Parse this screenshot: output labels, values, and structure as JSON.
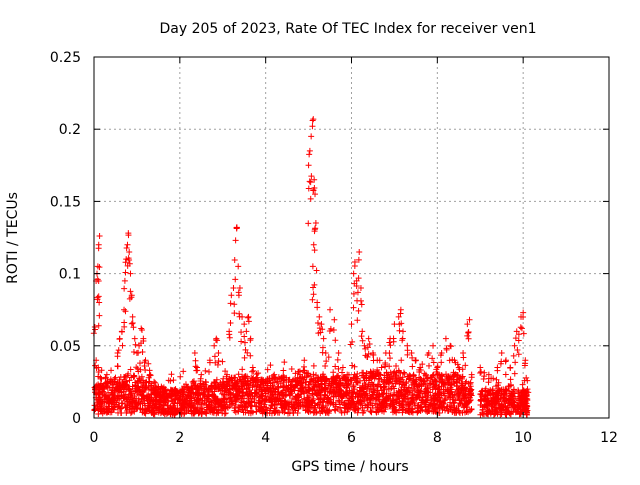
{
  "chart_data": {
    "type": "scatter",
    "title": "Day 205 of 2023, Rate Of TEC Index for receiver ven1",
    "xlabel": "GPS time / hours",
    "ylabel": "ROTI / TECUs",
    "xlim": [
      0,
      12
    ],
    "ylim": [
      0,
      0.25
    ],
    "x_ticks": [
      "0",
      "2",
      "4",
      "6",
      "8",
      "10",
      "12"
    ],
    "y_ticks": [
      "0",
      "0.05",
      "0.1",
      "0.15",
      "0.2",
      "0.25"
    ],
    "x_tick_values": [
      0,
      2,
      4,
      6,
      8,
      10,
      12
    ],
    "y_tick_values": [
      0,
      0.05,
      0.1,
      0.15,
      0.2,
      0.25
    ],
    "grid": true,
    "marker": "plus",
    "series": [
      {
        "color": "#ff0000",
        "points": [
          [
            0.02,
            0.063
          ],
          [
            0.05,
            0.04
          ],
          [
            0.07,
            0.1
          ],
          [
            0.09,
            0.105
          ],
          [
            0.11,
            0.12
          ],
          [
            0.13,
            0.126
          ],
          [
            0.12,
            0.08
          ],
          [
            0.1,
            0.035
          ],
          [
            0.15,
            0.028
          ],
          [
            0.2,
            0.022
          ],
          [
            0.3,
            0.03
          ],
          [
            0.4,
            0.025
          ],
          [
            0.5,
            0.028
          ],
          [
            0.55,
            0.045
          ],
          [
            0.6,
            0.055
          ],
          [
            0.65,
            0.06
          ],
          [
            0.7,
            0.075
          ],
          [
            0.72,
            0.095
          ],
          [
            0.75,
            0.11
          ],
          [
            0.78,
            0.12
          ],
          [
            0.8,
            0.128
          ],
          [
            0.82,
            0.115
          ],
          [
            0.85,
            0.1
          ],
          [
            0.88,
            0.085
          ],
          [
            0.9,
            0.07
          ],
          [
            0.95,
            0.055
          ],
          [
            1.0,
            0.045
          ],
          [
            1.05,
            0.05
          ],
          [
            1.1,
            0.062
          ],
          [
            1.15,
            0.055
          ],
          [
            1.2,
            0.04
          ],
          [
            1.3,
            0.03
          ],
          [
            1.4,
            0.025
          ],
          [
            1.5,
            0.02
          ],
          [
            1.6,
            0.018
          ],
          [
            1.7,
            0.015
          ],
          [
            1.8,
            0.017
          ],
          [
            1.9,
            0.02
          ],
          [
            2.0,
            0.018
          ],
          [
            2.1,
            0.022
          ],
          [
            2.2,
            0.02
          ],
          [
            2.3,
            0.025
          ],
          [
            2.35,
            0.045
          ],
          [
            2.4,
            0.035
          ],
          [
            2.5,
            0.03
          ],
          [
            2.6,
            0.025
          ],
          [
            2.7,
            0.04
          ],
          [
            2.8,
            0.05
          ],
          [
            2.85,
            0.055
          ],
          [
            2.9,
            0.045
          ],
          [
            3.0,
            0.025
          ],
          [
            3.1,
            0.03
          ],
          [
            3.15,
            0.06
          ],
          [
            3.2,
            0.085
          ],
          [
            3.25,
            0.09
          ],
          [
            3.3,
            0.123
          ],
          [
            3.33,
            0.132
          ],
          [
            3.36,
            0.105
          ],
          [
            3.4,
            0.09
          ],
          [
            3.45,
            0.07
          ],
          [
            3.5,
            0.065
          ],
          [
            3.55,
            0.06
          ],
          [
            3.6,
            0.07
          ],
          [
            3.65,
            0.055
          ],
          [
            3.7,
            0.035
          ],
          [
            3.8,
            0.028
          ],
          [
            4.0,
            0.025
          ],
          [
            4.2,
            0.03
          ],
          [
            4.4,
            0.028
          ],
          [
            4.6,
            0.025
          ],
          [
            4.8,
            0.03
          ],
          [
            4.9,
            0.04
          ],
          [
            5.0,
            0.175
          ],
          [
            5.03,
            0.185
          ],
          [
            5.06,
            0.195
          ],
          [
            5.09,
            0.202
          ],
          [
            5.11,
            0.207
          ],
          [
            5.13,
            0.165
          ],
          [
            5.15,
            0.155
          ],
          [
            5.17,
            0.135
          ],
          [
            5.12,
            0.12
          ],
          [
            5.1,
            0.105
          ],
          [
            5.2,
            0.08
          ],
          [
            5.25,
            0.07
          ],
          [
            5.3,
            0.065
          ],
          [
            5.35,
            0.055
          ],
          [
            5.4,
            0.045
          ],
          [
            5.5,
            0.075
          ],
          [
            5.6,
            0.068
          ],
          [
            5.7,
            0.045
          ],
          [
            5.8,
            0.035
          ],
          [
            5.9,
            0.03
          ],
          [
            6.0,
            0.065
          ],
          [
            6.05,
            0.1
          ],
          [
            6.08,
            0.108
          ],
          [
            6.12,
            0.095
          ],
          [
            6.15,
            0.087
          ],
          [
            6.18,
            0.115
          ],
          [
            6.22,
            0.09
          ],
          [
            6.25,
            0.06
          ],
          [
            6.3,
            0.05
          ],
          [
            6.4,
            0.055
          ],
          [
            6.5,
            0.045
          ],
          [
            6.6,
            0.04
          ],
          [
            6.7,
            0.035
          ],
          [
            6.8,
            0.045
          ],
          [
            6.9,
            0.055
          ],
          [
            7.0,
            0.065
          ],
          [
            7.1,
            0.07
          ],
          [
            7.15,
            0.075
          ],
          [
            7.2,
            0.06
          ],
          [
            7.3,
            0.05
          ],
          [
            7.4,
            0.045
          ],
          [
            7.5,
            0.04
          ],
          [
            7.6,
            0.035
          ],
          [
            7.8,
            0.045
          ],
          [
            7.9,
            0.05
          ],
          [
            8.0,
            0.035
          ],
          [
            8.1,
            0.045
          ],
          [
            8.2,
            0.055
          ],
          [
            8.3,
            0.05
          ],
          [
            8.4,
            0.04
          ],
          [
            8.5,
            0.035
          ],
          [
            8.6,
            0.045
          ],
          [
            8.7,
            0.065
          ],
          [
            8.75,
            0.068
          ],
          [
            8.8,
            0.03
          ],
          [
            9.0,
            0.035
          ],
          [
            9.2,
            0.03
          ],
          [
            9.4,
            0.035
          ],
          [
            9.5,
            0.045
          ],
          [
            9.6,
            0.04
          ],
          [
            9.7,
            0.035
          ],
          [
            9.8,
            0.05
          ],
          [
            9.85,
            0.06
          ],
          [
            9.9,
            0.058
          ],
          [
            9.95,
            0.07
          ],
          [
            10.0,
            0.073
          ],
          [
            10.05,
            0.04
          ],
          [
            10.1,
            0.02
          ]
        ],
        "baseline_band": [
          [
            0.0,
            0.012
          ],
          [
            0.2,
            0.014
          ],
          [
            0.4,
            0.015
          ],
          [
            0.6,
            0.016
          ],
          [
            0.8,
            0.017
          ],
          [
            1.0,
            0.016
          ],
          [
            1.2,
            0.014
          ],
          [
            1.4,
            0.013
          ],
          [
            1.6,
            0.012
          ],
          [
            1.8,
            0.011
          ],
          [
            2.0,
            0.011
          ],
          [
            2.2,
            0.012
          ],
          [
            2.4,
            0.013
          ],
          [
            2.6,
            0.013
          ],
          [
            2.8,
            0.014
          ],
          [
            3.0,
            0.014
          ],
          [
            3.2,
            0.016
          ],
          [
            3.4,
            0.017
          ],
          [
            3.6,
            0.016
          ],
          [
            3.8,
            0.015
          ],
          [
            4.0,
            0.015
          ],
          [
            4.2,
            0.016
          ],
          [
            4.4,
            0.016
          ],
          [
            4.6,
            0.015
          ],
          [
            4.8,
            0.016
          ],
          [
            5.0,
            0.017
          ],
          [
            5.2,
            0.017
          ],
          [
            5.4,
            0.016
          ],
          [
            5.6,
            0.016
          ],
          [
            5.8,
            0.016
          ],
          [
            6.0,
            0.017
          ],
          [
            6.2,
            0.018
          ],
          [
            6.4,
            0.018
          ],
          [
            6.6,
            0.018
          ],
          [
            6.8,
            0.018
          ],
          [
            7.0,
            0.018
          ],
          [
            7.2,
            0.018
          ],
          [
            7.4,
            0.017
          ],
          [
            7.6,
            0.017
          ],
          [
            7.8,
            0.017
          ],
          [
            8.0,
            0.017
          ],
          [
            8.2,
            0.017
          ],
          [
            8.4,
            0.017
          ],
          [
            8.6,
            0.016
          ],
          [
            8.8,
            0.012
          ],
          [
            9.0,
            0.011
          ],
          [
            9.2,
            0.011
          ],
          [
            9.4,
            0.011
          ],
          [
            9.6,
            0.011
          ],
          [
            9.8,
            0.012
          ],
          [
            10.0,
            0.011
          ],
          [
            10.1,
            0.009
          ]
        ]
      }
    ]
  }
}
